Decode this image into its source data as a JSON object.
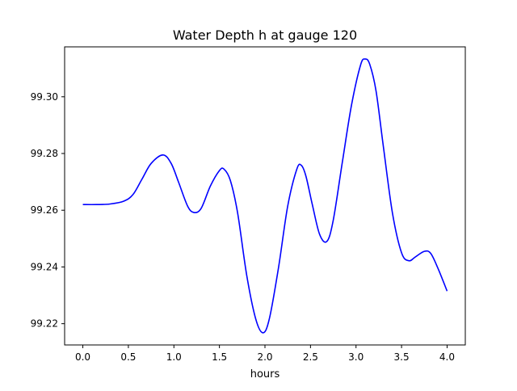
{
  "chart_data": {
    "type": "line",
    "title": "Water Depth h at gauge 120",
    "xlabel": "hours",
    "ylabel": "",
    "xlim": [
      -0.2,
      4.2
    ],
    "ylim": [
      99.2125,
      99.3176
    ],
    "xticks": [
      0.0,
      0.5,
      1.0,
      1.5,
      2.0,
      2.5,
      3.0,
      3.5,
      4.0
    ],
    "xtick_labels": [
      "0.0",
      "0.5",
      "1.0",
      "1.5",
      "2.0",
      "2.5",
      "3.0",
      "3.5",
      "4.0"
    ],
    "yticks": [
      99.22,
      99.24,
      99.26,
      99.28,
      99.3
    ],
    "ytick_labels": [
      "99.22",
      "99.24",
      "99.26",
      "99.28",
      "99.30"
    ],
    "grid": false,
    "series": [
      {
        "color": "#0000ff",
        "x": [
          0.0,
          0.15,
          0.3,
          0.45,
          0.55,
          0.65,
          0.75,
          0.88,
          0.97,
          1.05,
          1.15,
          1.22,
          1.3,
          1.4,
          1.5,
          1.55,
          1.62,
          1.7,
          1.8,
          1.9,
          1.98,
          2.05,
          2.15,
          2.25,
          2.35,
          2.4,
          2.45,
          2.52,
          2.6,
          2.68,
          2.75,
          2.85,
          2.95,
          3.05,
          3.1,
          3.15,
          3.22,
          3.3,
          3.4,
          3.5,
          3.58,
          3.65,
          3.75,
          3.82,
          3.9,
          4.0
        ],
        "y": [
          99.262,
          99.262,
          99.2622,
          99.2632,
          99.2655,
          99.271,
          99.2765,
          99.2795,
          99.2765,
          99.27,
          99.2615,
          99.2592,
          99.2607,
          99.2685,
          99.274,
          99.2745,
          99.2705,
          99.259,
          99.237,
          99.2215,
          99.2168,
          99.222,
          99.24,
          99.2615,
          99.2745,
          99.2758,
          99.272,
          99.262,
          99.2515,
          99.249,
          99.2565,
          99.277,
          99.297,
          99.3112,
          99.3133,
          99.3115,
          99.302,
          99.2825,
          99.259,
          99.245,
          99.2422,
          99.2435,
          99.2455,
          99.2448,
          99.2395,
          99.2315
        ]
      }
    ]
  }
}
